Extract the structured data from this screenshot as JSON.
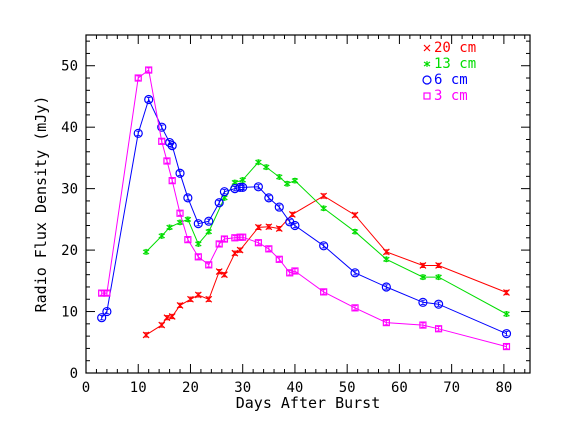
{
  "chart_data": {
    "type": "line",
    "xlabel": "Days After Burst",
    "ylabel": "Radio Flux Density (mJy)",
    "xlim": [
      0,
      85
    ],
    "ylim": [
      0,
      55
    ],
    "x_ticks": [
      0,
      10,
      20,
      30,
      40,
      50,
      60,
      70,
      80
    ],
    "y_ticks": [
      0,
      10,
      20,
      30,
      40,
      50
    ],
    "grid": false,
    "legend_position": "top-right",
    "series": [
      {
        "name": "20 cm",
        "color": "#ff0000",
        "marker": "x",
        "x": [
          11.5,
          14.5,
          15.5,
          16.5,
          18,
          20,
          21.5,
          23.5,
          25.5,
          26.5,
          28.5,
          29.5,
          33,
          35,
          37,
          39.5,
          45.5,
          51.5,
          57.5,
          64.5,
          67.5,
          80.5
        ],
        "y": [
          6.2,
          7.8,
          9.0,
          9.2,
          11.0,
          12.0,
          12.7,
          12.0,
          16.5,
          16.0,
          19.5,
          20.0,
          23.7,
          23.8,
          23.5,
          25.8,
          28.8,
          25.7,
          19.7,
          17.5,
          17.5,
          13.1
        ]
      },
      {
        "name": "13 cm",
        "color": "#00dd00",
        "marker": "star",
        "x": [
          11.5,
          14.5,
          16,
          18,
          19.5,
          21.5,
          23.5,
          26.5,
          28.5,
          30,
          33,
          34.5,
          37,
          38.5,
          40,
          45.5,
          51.5,
          57.5,
          64.5,
          67.5,
          80.5
        ],
        "y": [
          19.7,
          22.3,
          23.7,
          24.5,
          25.0,
          21.0,
          23.0,
          28.5,
          31.0,
          31.4,
          34.3,
          33.5,
          31.9,
          30.8,
          31.3,
          26.8,
          23.0,
          18.5,
          15.6,
          15.6,
          9.6
        ]
      },
      {
        "name": "6 cm",
        "color": "#0000ff",
        "marker": "circle",
        "x": [
          3,
          4,
          10,
          12,
          14.5,
          16,
          16.5,
          18,
          19.5,
          21.5,
          23.5,
          25.5,
          26.5,
          28.5,
          29.5,
          30,
          33,
          35,
          37,
          39,
          40,
          45.5,
          51.5,
          57.5,
          64.5,
          67.5,
          80.5
        ],
        "y": [
          9.0,
          10.0,
          39.0,
          44.5,
          40.0,
          37.5,
          37.0,
          32.5,
          28.5,
          24.3,
          24.7,
          27.7,
          29.5,
          30.0,
          30.2,
          30.2,
          30.3,
          28.5,
          27.0,
          24.6,
          24.0,
          20.7,
          16.3,
          14.0,
          11.5,
          11.2,
          6.4
        ]
      },
      {
        "name": "3 cm",
        "color": "#ff00ff",
        "marker": "square",
        "x": [
          3,
          4,
          10,
          12,
          14.5,
          15.5,
          16.5,
          18,
          19.5,
          21.5,
          23.5,
          25.5,
          26.5,
          28.5,
          29.5,
          30,
          33,
          35,
          37,
          39,
          40,
          45.5,
          51.5,
          57.5,
          64.5,
          67.5,
          80.5
        ],
        "y": [
          13.0,
          13.0,
          48.0,
          49.3,
          37.7,
          34.5,
          31.3,
          26.0,
          21.7,
          18.9,
          17.6,
          21.0,
          21.8,
          22.0,
          22.1,
          22.1,
          21.2,
          20.2,
          18.5,
          16.3,
          16.6,
          13.2,
          10.6,
          8.2,
          7.8,
          7.2,
          4.3
        ]
      }
    ]
  }
}
